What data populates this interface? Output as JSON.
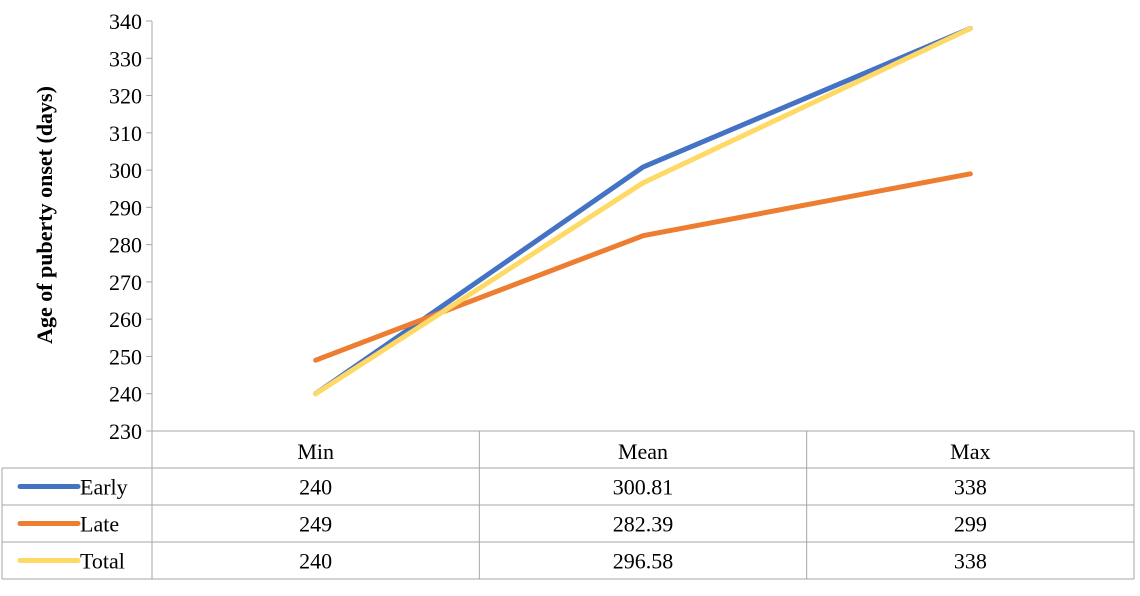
{
  "chart_data": {
    "type": "line",
    "ylabel": "Age of puberty onset (days)",
    "xlabel": "",
    "categories": [
      "Min",
      "Mean",
      "Max"
    ],
    "ylim": [
      230,
      340
    ],
    "yticks": [
      230,
      240,
      250,
      260,
      270,
      280,
      290,
      300,
      310,
      320,
      330,
      340
    ],
    "grid": false,
    "legend": "data-table",
    "series": [
      {
        "name": "Early",
        "color": "#4472C4",
        "values": [
          240,
          300.81,
          338
        ],
        "labels": [
          "240",
          "300.81",
          "338"
        ]
      },
      {
        "name": "Late",
        "color": "#ED7D31",
        "values": [
          249,
          282.39,
          299
        ],
        "labels": [
          "249",
          "282.39",
          "299"
        ]
      },
      {
        "name": "Total",
        "color": "#FFD966",
        "values": [
          240,
          296.58,
          338
        ],
        "labels": [
          "240",
          "296.58",
          "338"
        ]
      }
    ]
  }
}
